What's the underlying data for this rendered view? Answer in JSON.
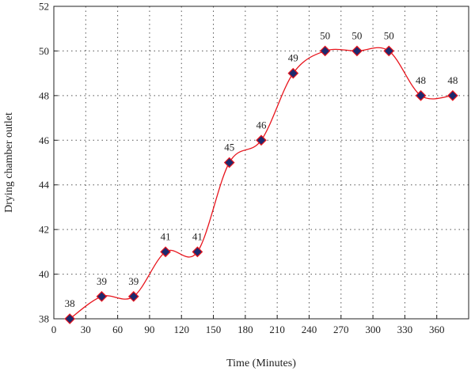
{
  "chart_data": {
    "type": "line",
    "title": "",
    "xlabel": "Time (Minutes)",
    "ylabel": "Drying chamber outlet",
    "xlim": [
      0,
      390
    ],
    "ylim": [
      38,
      52
    ],
    "xticks": [
      0,
      30,
      60,
      90,
      120,
      150,
      180,
      210,
      240,
      270,
      300,
      330,
      360
    ],
    "yticks": [
      38,
      40,
      42,
      44,
      46,
      48,
      50,
      52
    ],
    "grid": true,
    "line_color": "#e8141c",
    "marker_fill": "#1c2a6e",
    "marker_stroke": "#e8141c",
    "marker": "diamond",
    "series": [
      {
        "x": [
          15,
          45,
          75,
          105,
          135,
          165,
          195,
          225,
          255,
          285,
          315,
          345,
          375
        ],
        "values": [
          38,
          39,
          39,
          41,
          41,
          45,
          46,
          49,
          50,
          50,
          50,
          48,
          48
        ],
        "labels": [
          "38",
          "39",
          "39",
          "41",
          "41",
          "45",
          "46",
          "49",
          "50",
          "50",
          "50",
          "48",
          "48"
        ]
      }
    ]
  }
}
